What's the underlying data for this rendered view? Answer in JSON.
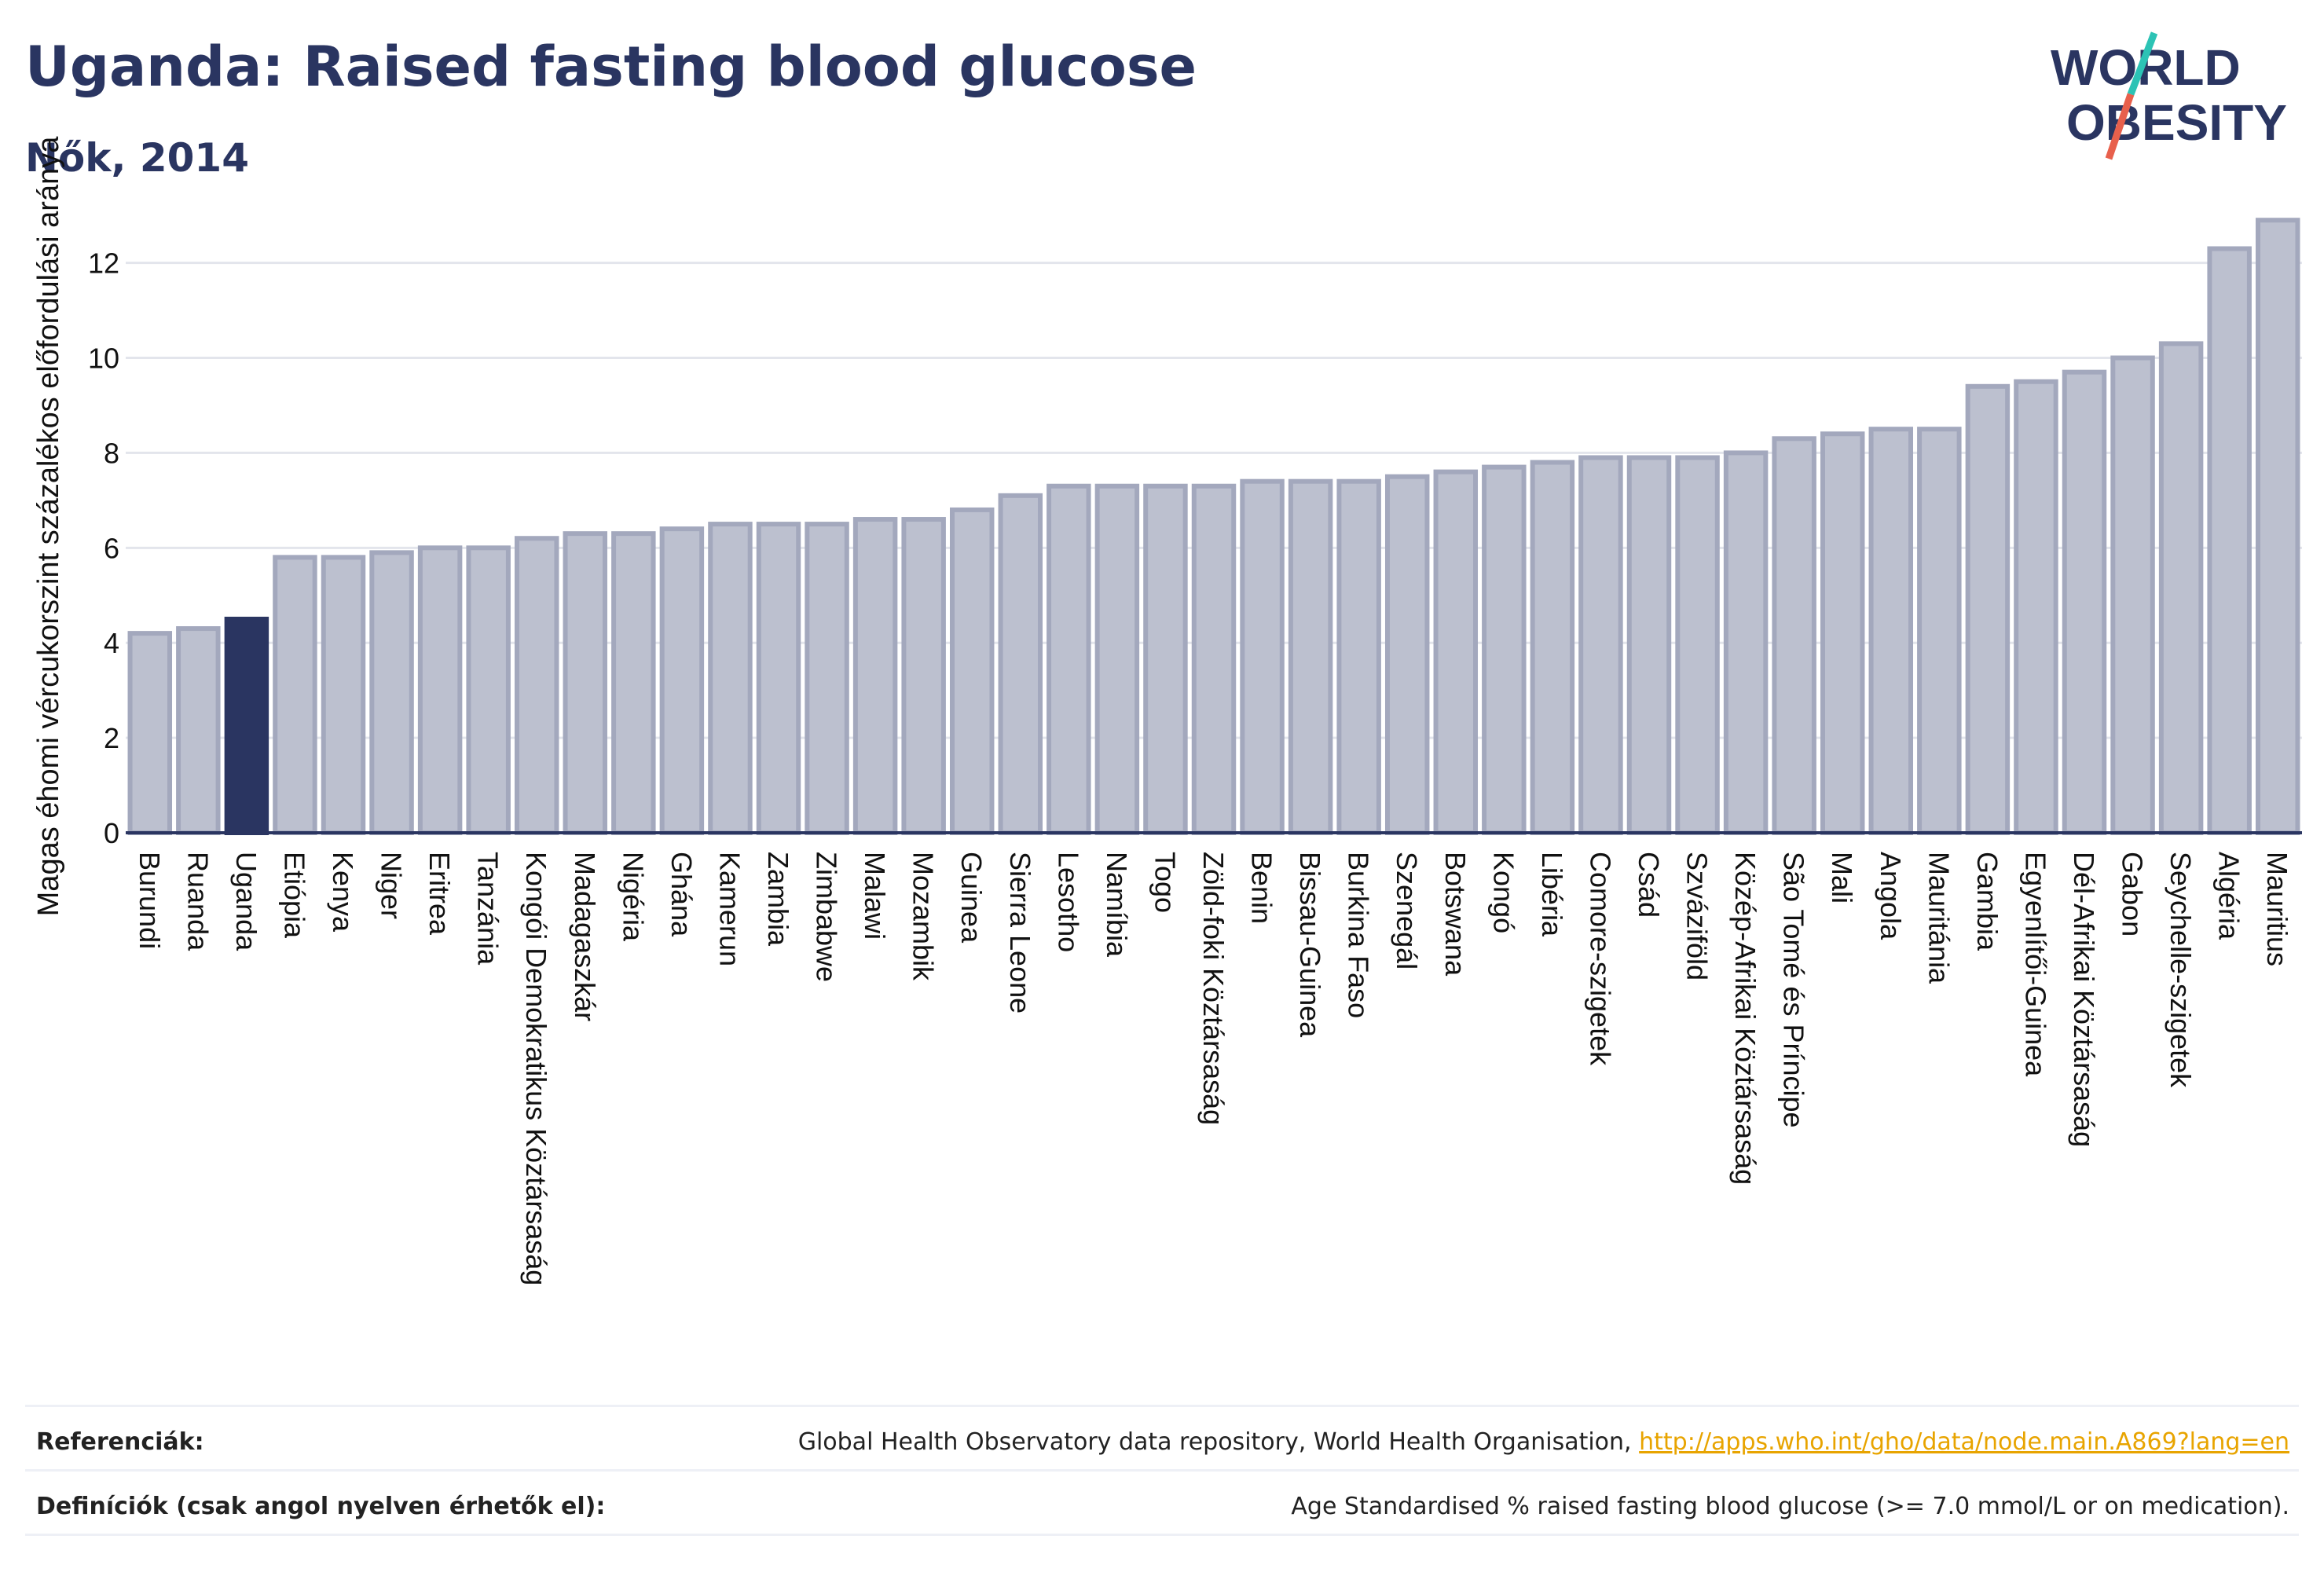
{
  "header": {
    "title": "Uganda: Raised fasting blood glucose",
    "subtitle": "Nők, 2014"
  },
  "logo": {
    "line1": "WORLD",
    "line2": "OBESITY",
    "colors": {
      "text": "#2a3561",
      "slash_teal": "#2cc3b5",
      "slash_red": "#e8604c"
    }
  },
  "chart_data": {
    "type": "bar",
    "ylabel": "Magas éhomi vércukorszint százalékos előfordulási aránya",
    "xlabel": "",
    "ylim": [
      0,
      13.4
    ],
    "yticks": [
      0,
      2,
      4,
      6,
      8,
      10,
      12
    ],
    "grid": true,
    "legend": "none",
    "highlight_category": "Uganda",
    "colors": {
      "bar": "#bcc0cf",
      "bar_outline": "#a3a8bd",
      "highlight": "#2a3561",
      "axis": "#2a3561",
      "grid": "#e3e5ec"
    },
    "categories": [
      "Burundi",
      "Ruanda",
      "Uganda",
      "Etiópia",
      "Kenya",
      "Niger",
      "Eritrea",
      "Tanzánia",
      "Kongói Demokratikus Köztársaság",
      "Madagaszkár",
      "Nigéria",
      "Ghána",
      "Kamerun",
      "Zambia",
      "Zimbabwe",
      "Malawi",
      "Mozambik",
      "Guinea",
      "Sierra Leone",
      "Lesotho",
      "Namíbia",
      "Togo",
      "Zöld-foki Köztársaság",
      "Benin",
      "Bissau-Guinea",
      "Burkina Faso",
      "Szenegál",
      "Botswana",
      "Kongó",
      "Libéria",
      "Comore-szigetek",
      "Csád",
      "Szváziföld",
      "Közép-Afrikai Köztársaság",
      "São Tomé és Príncipe",
      "Mali",
      "Angola",
      "Mauritánia",
      "Gambia",
      "Egyenlítői-Guinea",
      "Dél-Afrikai Köztársaság",
      "Gabon",
      "Seychelle-szigetek",
      "Algéria",
      "Mauritius"
    ],
    "values": [
      4.2,
      4.3,
      4.5,
      5.8,
      5.8,
      5.9,
      6.0,
      6.0,
      6.2,
      6.3,
      6.3,
      6.4,
      6.5,
      6.5,
      6.5,
      6.6,
      6.6,
      6.8,
      7.1,
      7.3,
      7.3,
      7.3,
      7.3,
      7.4,
      7.4,
      7.4,
      7.5,
      7.6,
      7.7,
      7.8,
      7.9,
      7.9,
      7.9,
      8.0,
      8.3,
      8.4,
      8.5,
      8.5,
      9.4,
      9.5,
      9.7,
      10.0,
      10.3,
      12.3,
      12.9
    ]
  },
  "footer": {
    "references_label": "Referenciák:",
    "references_text": "Global Health Observatory data repository, World Health Organisation,",
    "references_link": "http://apps.who.int/gho/data/node.main.A869?lang=en",
    "definitions_label": "Definíciók (csak angol nyelven érhetők el):",
    "definitions_text": "Age Standardised % raised fasting blood glucose (>= 7.0 mmol/L or on medication)."
  }
}
